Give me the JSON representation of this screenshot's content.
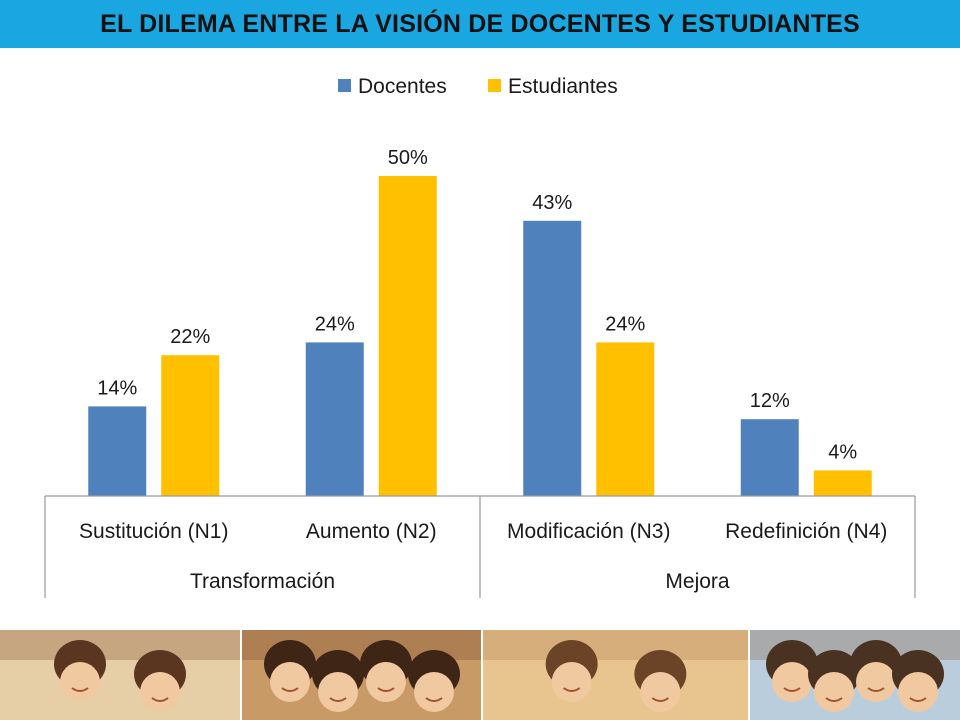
{
  "slide": {
    "title": "EL DILEMA ENTRE LA VISIÓN DE DOCENTES Y ESTUDIANTES"
  },
  "chart_data": {
    "type": "bar",
    "title": "",
    "xlabel": "",
    "ylabel": "",
    "ylim": [
      0,
      55
    ],
    "grid": false,
    "legend_position": "top-center",
    "categories": [
      "Sustitución (N1)",
      "Aumento (N2)",
      "Modificación (N3)",
      "Redefinición (N4)"
    ],
    "groups": [
      {
        "label": "Transformación",
        "categories": [
          "Sustitución (N1)",
          "Aumento (N2)"
        ]
      },
      {
        "label": "Mejora",
        "categories": [
          "Modificación (N3)",
          "Redefinición (N4)"
        ]
      }
    ],
    "series": [
      {
        "name": "Docentes",
        "color": "#4f81bd",
        "values": [
          14,
          24,
          43,
          12
        ],
        "labels": [
          "14%",
          "24%",
          "43%",
          "12%"
        ]
      },
      {
        "name": "Estudiantes",
        "color": "#ffc000",
        "values": [
          22,
          50,
          24,
          4
        ],
        "labels": [
          "22%",
          "50%",
          "24%",
          "4%"
        ]
      }
    ]
  },
  "photo_strip": {
    "panels": [
      {
        "name": "girl-smiling-library-photo",
        "bg": "#c9b48e"
      },
      {
        "name": "students-group-photo",
        "bg": "#b88f5e"
      },
      {
        "name": "kids-classroom-photo",
        "bg": "#d7b07a"
      },
      {
        "name": "students-laptop-photo",
        "bg": "#9fb6c9"
      }
    ]
  }
}
